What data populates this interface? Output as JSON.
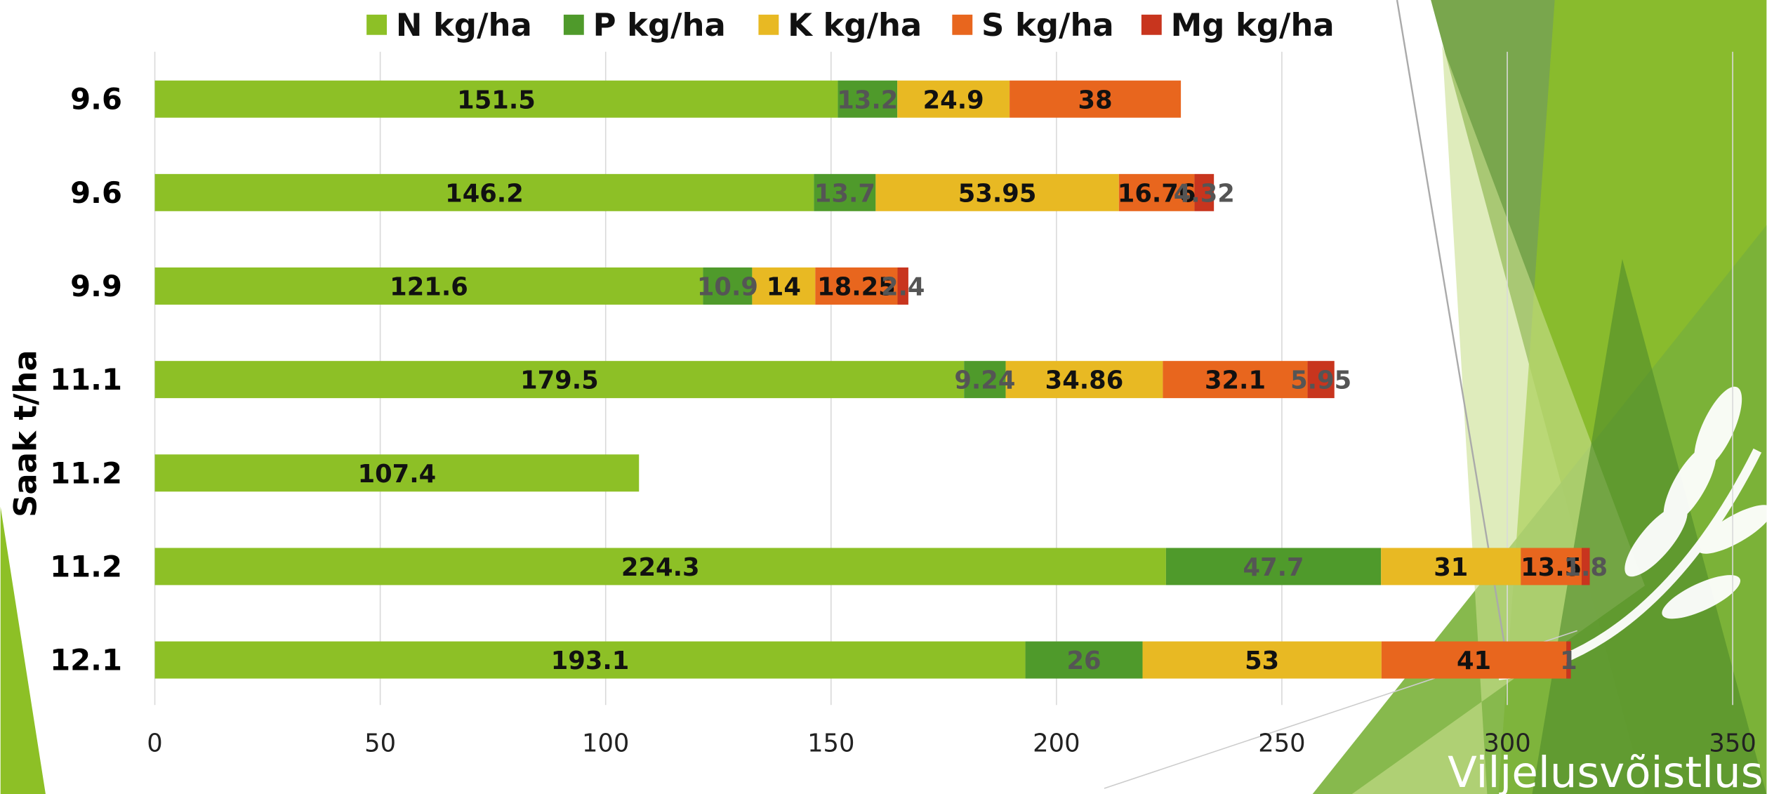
{
  "chart_data": {
    "type": "bar",
    "orientation": "horizontal",
    "stacked": true,
    "ylabel": "Saak t/ha",
    "categories": [
      "9.6",
      "9.6",
      "9.9",
      "11.1",
      "11.2",
      "11.2",
      "12.1"
    ],
    "series": [
      {
        "name": "N kg/ha",
        "color": "#8dc026",
        "values": [
          151.5,
          146.2,
          121.6,
          179.5,
          107.4,
          224.3,
          193.1
        ]
      },
      {
        "name": "P kg/ha",
        "color": "#4f9a2b",
        "values": [
          13.2,
          13.7,
          10.9,
          9.24,
          null,
          47.7,
          26
        ]
      },
      {
        "name": "K kg/ha",
        "color": "#e8b923",
        "values": [
          24.9,
          53.95,
          14,
          34.86,
          null,
          31,
          53
        ]
      },
      {
        "name": "S kg/ha",
        "color": "#e8661e",
        "values": [
          38,
          16.76,
          18.25,
          32.1,
          null,
          13.5,
          41
        ]
      },
      {
        "name": "Mg kg/ha",
        "color": "#c8351e",
        "values": [
          null,
          4.32,
          2.4,
          5.95,
          null,
          1.8,
          1
        ]
      }
    ],
    "xlim": [
      0,
      350
    ],
    "xticks": [
      0,
      50,
      100,
      150,
      200,
      250,
      300,
      350
    ],
    "grid": true,
    "legend": "top"
  },
  "branding": "Viljelusvõistlus"
}
